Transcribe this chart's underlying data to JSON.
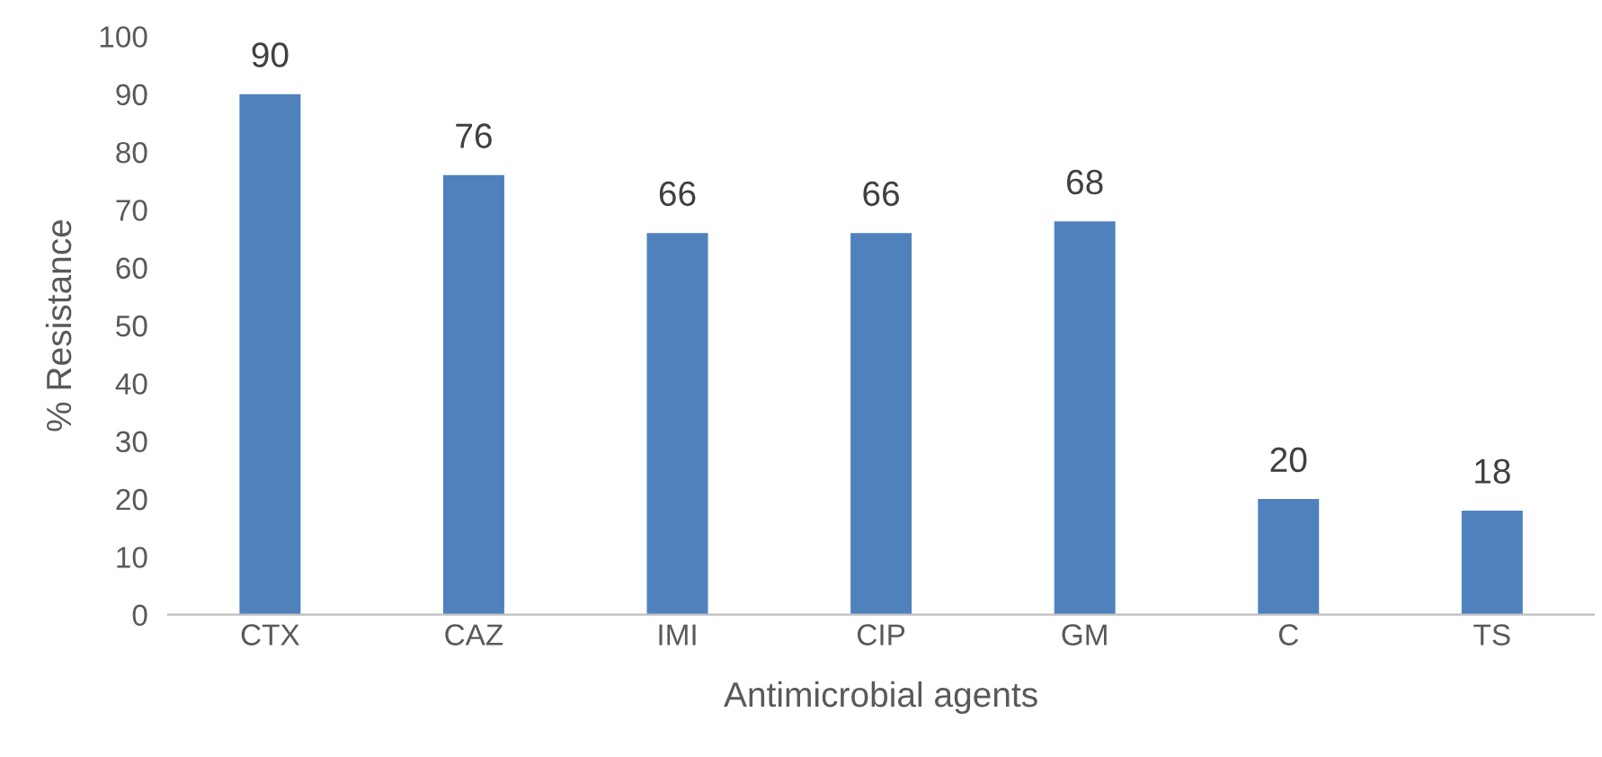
{
  "chart_data": {
    "type": "bar",
    "xlabel": "Antimicrobial agents",
    "ylabel": "% Resistance",
    "categories": [
      "CTX",
      "CAZ",
      "IMI",
      "CIP",
      "GM",
      "C",
      "TS"
    ],
    "values": [
      90,
      76,
      66,
      66,
      68,
      20,
      18
    ],
    "color": "#4f81bd",
    "ylim": [
      0,
      100
    ],
    "yticks": [
      0,
      10,
      20,
      30,
      40,
      50,
      60,
      70,
      80,
      90,
      100
    ],
    "grid": false,
    "data_labels": true
  }
}
